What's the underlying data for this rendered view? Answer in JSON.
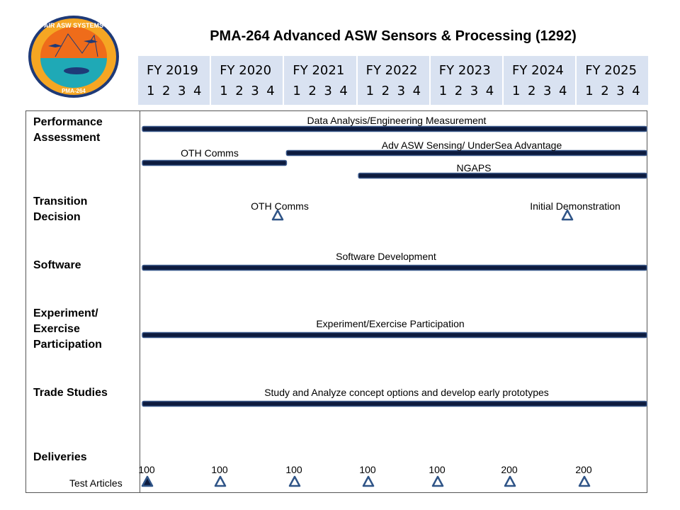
{
  "logo": {
    "top_text": "AIR ASW SYSTEMS",
    "bottom_text": "PMA-264",
    "colors": {
      "ring": "#1e3a78",
      "outer": "#f5a623",
      "sky": "#ef6c1a",
      "sea": "#1fa9b6"
    }
  },
  "title": "PMA-264 Advanced ASW Sensors & Processing (1292)",
  "fiscal_years": [
    {
      "label": "FY 2019",
      "quarters": [
        "1",
        "2",
        "3",
        "4"
      ]
    },
    {
      "label": "FY 2020",
      "quarters": [
        "1",
        "2",
        "3",
        "4"
      ]
    },
    {
      "label": "FY 2021",
      "quarters": [
        "1",
        "2",
        "3",
        "4"
      ]
    },
    {
      "label": "FY 2022",
      "quarters": [
        "1",
        "2",
        "3",
        "4"
      ]
    },
    {
      "label": "FY 2023",
      "quarters": [
        "1",
        "2",
        "3",
        "4"
      ]
    },
    {
      "label": "FY 2024",
      "quarters": [
        "1",
        "2",
        "3",
        "4"
      ]
    },
    {
      "label": "FY 2025",
      "quarters": [
        "1",
        "2",
        "3",
        "4"
      ]
    }
  ],
  "rows": [
    {
      "label": "Performance\nAssessment"
    },
    {
      "label": "Transition\nDecision"
    },
    {
      "label": "Software"
    },
    {
      "label": "Experiment/\nExercise\nParticipation"
    },
    {
      "label": "Trade Studies"
    },
    {
      "label": "Deliveries"
    }
  ],
  "test_articles_label": "Test Articles",
  "chart_data": {
    "type": "gantt",
    "time_unit": "fiscal quarter",
    "time_range": [
      "FY2019 Q1",
      "FY2025 Q4"
    ],
    "colors": {
      "bar": "#0d1b3e",
      "bar_edge": "#3c5a8c",
      "milestone": "#2f5487",
      "milestone_filled": "#0d1b3e"
    },
    "bars": [
      {
        "row": "Performance Assessment",
        "label": "Data Analysis/Engineering Measurement",
        "start": "FY2019 Q1",
        "end": "FY2025 Q4"
      },
      {
        "row": "Performance Assessment",
        "label": "OTH Comms",
        "start": "FY2019 Q1",
        "end": "FY2020 Q4"
      },
      {
        "row": "Performance Assessment",
        "label": "Adv ASW Sensing/ UnderSea Advantage",
        "start": "FY2021 Q1",
        "end": "FY2025 Q4"
      },
      {
        "row": "Performance Assessment",
        "label": "NGAPS",
        "start": "FY2022 Q1",
        "end": "FY2025 Q4"
      },
      {
        "row": "Software",
        "label": "Software Development",
        "start": "FY2019 Q1",
        "end": "FY2025 Q4"
      },
      {
        "row": "Experiment/Exercise Participation",
        "label": "Experiment/Exercise Participation",
        "start": "FY2019 Q1",
        "end": "FY2025 Q4"
      },
      {
        "row": "Trade Studies",
        "label": "Study and Analyze concept options and develop early prototypes",
        "start": "FY2019 Q1",
        "end": "FY2025 Q4"
      }
    ],
    "milestones": [
      {
        "row": "Transition Decision",
        "label": "OTH Comms",
        "date": "FY2020 Q4",
        "filled": false
      },
      {
        "row": "Transition Decision",
        "label": "Initial  Demonstration",
        "date": "FY2024 Q4",
        "filled": false
      }
    ],
    "deliveries": [
      {
        "fiscal_year": "FY 2019",
        "quantity": "100",
        "filled": true
      },
      {
        "fiscal_year": "FY 2020",
        "quantity": "100",
        "filled": false
      },
      {
        "fiscal_year": "FY 2021",
        "quantity": "100",
        "filled": false
      },
      {
        "fiscal_year": "FY 2022",
        "quantity": "100",
        "filled": false
      },
      {
        "fiscal_year": "FY 2023",
        "quantity": "100",
        "filled": false
      },
      {
        "fiscal_year": "FY 2024",
        "quantity": "200",
        "filled": false
      },
      {
        "fiscal_year": "FY 2025",
        "quantity": "200",
        "filled": false
      }
    ]
  }
}
